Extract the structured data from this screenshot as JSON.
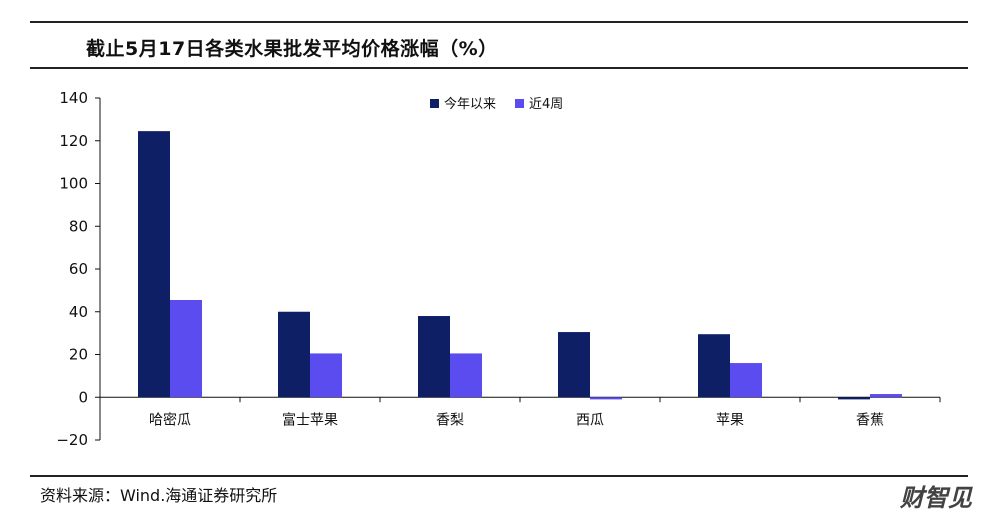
{
  "header": {
    "title": "截止5月17日各类水果批发平均价格涨幅（%）"
  },
  "footer": {
    "source": "资料来源：Wind.海通证券研究所",
    "watermark": "财智见"
  },
  "colors": {
    "series_0": "#0f1f66",
    "series_1": "#5b4cf0"
  },
  "chart_data": {
    "type": "bar",
    "title": "截止5月17日各类水果批发平均价格涨幅（%）",
    "categories": [
      "哈密瓜",
      "富士苹果",
      "香梨",
      "西瓜",
      "苹果",
      "香蕉"
    ],
    "series": [
      {
        "name": "今年以来",
        "values": [
          124.5,
          40.0,
          38.0,
          30.5,
          29.5,
          -1.0
        ]
      },
      {
        "name": "近4周",
        "values": [
          45.5,
          20.5,
          20.5,
          -1.0,
          16.0,
          1.5
        ]
      }
    ],
    "ylim": [
      -20,
      140
    ],
    "yticks": [
      -20,
      0,
      20,
      40,
      60,
      80,
      100,
      120,
      140
    ],
    "ytick_labels": [
      "−20",
      "0",
      "20",
      "40",
      "60",
      "80",
      "100",
      "120",
      "140"
    ],
    "xlabel": "",
    "ylabel": "",
    "grid": false,
    "legend_position": "top-center"
  }
}
